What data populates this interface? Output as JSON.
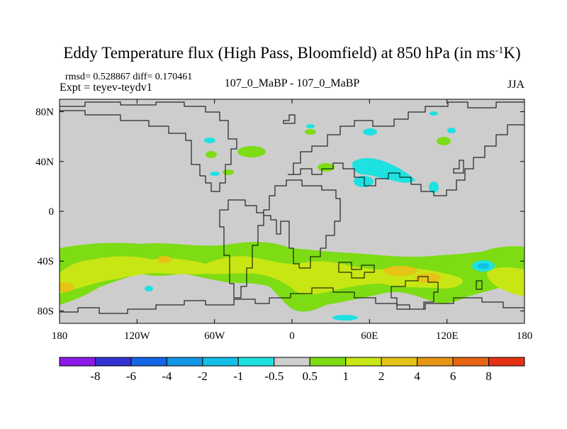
{
  "chart_data": {
    "type": "heatmap",
    "title_main": "Eddy Temperature flux (High Pass, Bloomfield) at 850 hPa (in ms",
    "title_sup": "-1",
    "title_end": "K)",
    "stats": "rmsd= 0.528867  diff= 0.170461",
    "expt": "Expt = teyev-teydv1",
    "center_label": "107_0_MaBP - 107_0_MaBP",
    "season": "JJA",
    "x_ticks": [
      {
        "value": -180,
        "label": "180"
      },
      {
        "value": -120,
        "label": "120W"
      },
      {
        "value": -60,
        "label": "60W"
      },
      {
        "value": 0,
        "label": "0"
      },
      {
        "value": 60,
        "label": "60E"
      },
      {
        "value": 120,
        "label": "120E"
      },
      {
        "value": 180,
        "label": "180"
      }
    ],
    "y_ticks": [
      {
        "value": 80,
        "label": "80N"
      },
      {
        "value": 40,
        "label": "40N"
      },
      {
        "value": 0,
        "label": "0"
      },
      {
        "value": -40,
        "label": "40S"
      },
      {
        "value": -80,
        "label": "80S"
      }
    ],
    "xlim": [
      -180,
      180
    ],
    "ylim": [
      -90,
      90
    ],
    "colorbar": {
      "colors": [
        "#8c1ae6",
        "#3232d2",
        "#1464e6",
        "#1496e6",
        "#14bee6",
        "#1ee1e1",
        "#cdcdcd",
        "#7ddc14",
        "#c8e614",
        "#e6c314",
        "#e69614",
        "#e66414",
        "#e63214"
      ],
      "labels": [
        "-8",
        "-6",
        "-4",
        "-2",
        "-1",
        "-0.5",
        "0.5",
        "1",
        "2",
        "4",
        "6",
        "8"
      ]
    }
  }
}
